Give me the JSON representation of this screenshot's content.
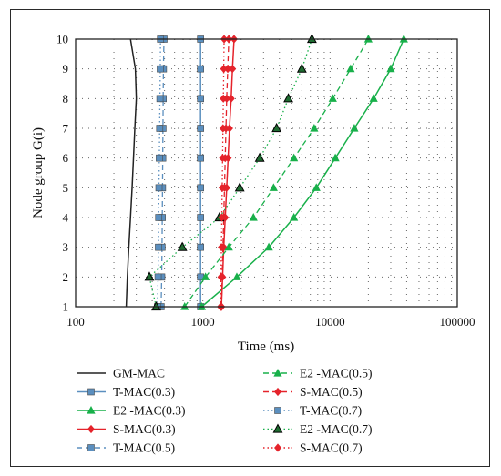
{
  "chart_data": {
    "type": "line",
    "xlabel": "Time (ms)",
    "ylabel": "Node group G(i)",
    "x_scale": "log",
    "xlim": [
      100,
      100000
    ],
    "ylim": [
      1,
      10
    ],
    "x_ticks": [
      "100",
      "1000",
      "10000",
      "100000"
    ],
    "y_ticks": [
      "1",
      "2",
      "3",
      "4",
      "5",
      "6",
      "7",
      "8",
      "9",
      "10"
    ],
    "grid": "dotted",
    "legend_position": "below",
    "y": [
      1,
      2,
      3,
      4,
      5,
      6,
      7,
      8,
      9,
      10
    ],
    "series": [
      {
        "name": "GM-MAC",
        "color": "#222222",
        "dash": "solid",
        "marker": "none",
        "x": [
          250,
          255,
          262,
          270,
          278,
          285,
          292,
          300,
          295,
          270
        ]
      },
      {
        "name": "T-MAC(0.3)",
        "color": "#5b8fbf",
        "dash": "solid",
        "marker": "square",
        "x": [
          960,
          960,
          960,
          960,
          960,
          960,
          960,
          960,
          960,
          960
        ]
      },
      {
        "name": "E2 -MAC(0.3)",
        "color": "#18b04a",
        "dash": "solid",
        "marker": "triangle",
        "x": [
          980,
          1850,
          3300,
          5200,
          7800,
          11000,
          15500,
          22000,
          30000,
          38000
        ]
      },
      {
        "name": "S-MAC(0.3)",
        "color": "#e5232b",
        "dash": "solid",
        "marker": "diamond",
        "x": [
          1400,
          1430,
          1460,
          1500,
          1540,
          1580,
          1620,
          1670,
          1710,
          1760
        ]
      },
      {
        "name": "T-MAC(0.5)",
        "color": "#5b8fbf",
        "dash": "dashed",
        "marker": "square",
        "x": [
          470,
          475,
          478,
          480,
          482,
          484,
          486,
          488,
          490,
          495
        ]
      },
      {
        "name": "E2 -MAC(0.5)",
        "color": "#18b04a",
        "dash": "dashed",
        "marker": "triangle",
        "x": [
          720,
          1050,
          1600,
          2500,
          3600,
          5200,
          7500,
          10500,
          14500,
          20000
        ]
      },
      {
        "name": "S-MAC(0.5)",
        "color": "#e5232b",
        "dash": "dashed",
        "marker": "diamond",
        "x": [
          1400,
          1420,
          1440,
          1460,
          1480,
          1500,
          1520,
          1540,
          1570,
          1600
        ]
      },
      {
        "name": "T-MAC(0.7)",
        "color": "#5b8fbf",
        "dash": "dotted",
        "marker": "square",
        "x": [
          440,
          445,
          448,
          450,
          452,
          455,
          458,
          460,
          463,
          465
        ]
      },
      {
        "name": "E2 -MAC(0.7)",
        "color": "#18b04a",
        "dash": "dotted",
        "marker": "triangle-dark",
        "x": [
          430,
          380,
          690,
          1350,
          1950,
          2800,
          3800,
          4700,
          6000,
          7200
        ]
      },
      {
        "name": "S-MAC(0.7)",
        "color": "#e5232b",
        "dash": "dotted",
        "marker": "diamond",
        "x": [
          1380,
          1390,
          1400,
          1410,
          1420,
          1430,
          1440,
          1450,
          1460,
          1470
        ]
      }
    ]
  }
}
